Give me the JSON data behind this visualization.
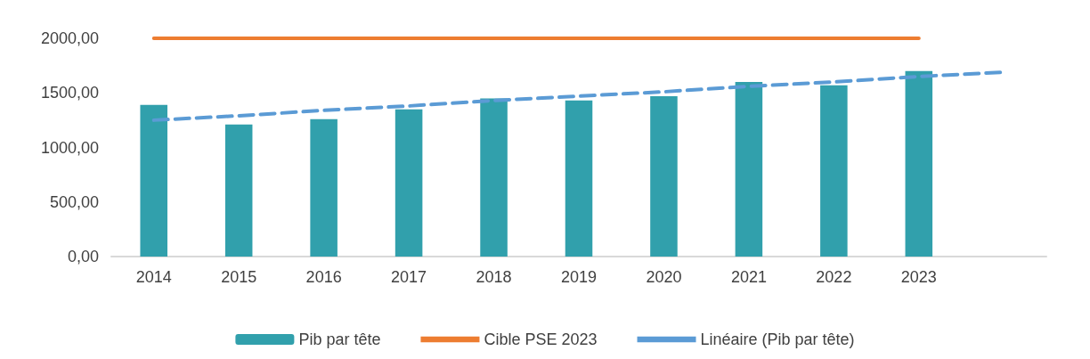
{
  "chart_data": {
    "type": "bar",
    "categories": [
      "2014",
      "2015",
      "2016",
      "2017",
      "2018",
      "2019",
      "2020",
      "2021",
      "2022",
      "2023",
      null
    ],
    "series": [
      {
        "name": "Pib par tête",
        "color": "#31a0ac",
        "values": [
          1390,
          1210,
          1260,
          1350,
          1450,
          1430,
          1470,
          1600,
          1570,
          1700,
          null
        ]
      },
      {
        "name": "Cible PSE 2023",
        "type": "line",
        "color": "#ed7d31",
        "line_style": "solid",
        "values": [
          2000,
          2000,
          2000,
          2000,
          2000,
          2000,
          2000,
          2000,
          2000,
          2000,
          null
        ]
      },
      {
        "name": "Linéaire (Pib par tête)",
        "type": "line",
        "color": "#5b9bd5",
        "line_style": "dashed",
        "values": [
          1250,
          1290,
          1340,
          1380,
          1430,
          1470,
          1510,
          1560,
          1600,
          1650,
          1690
        ]
      }
    ],
    "ylim": [
      0,
      2000
    ],
    "yticks": [
      {
        "value": 0,
        "label": "0,00"
      },
      {
        "value": 500,
        "label": "500,00"
      },
      {
        "value": 1000,
        "label": "1000,00"
      },
      {
        "value": 1500,
        "label": "1500,00"
      },
      {
        "value": 2000,
        "label": "2000,00"
      }
    ],
    "marker": "none",
    "grid": false,
    "legend": "bottom"
  }
}
